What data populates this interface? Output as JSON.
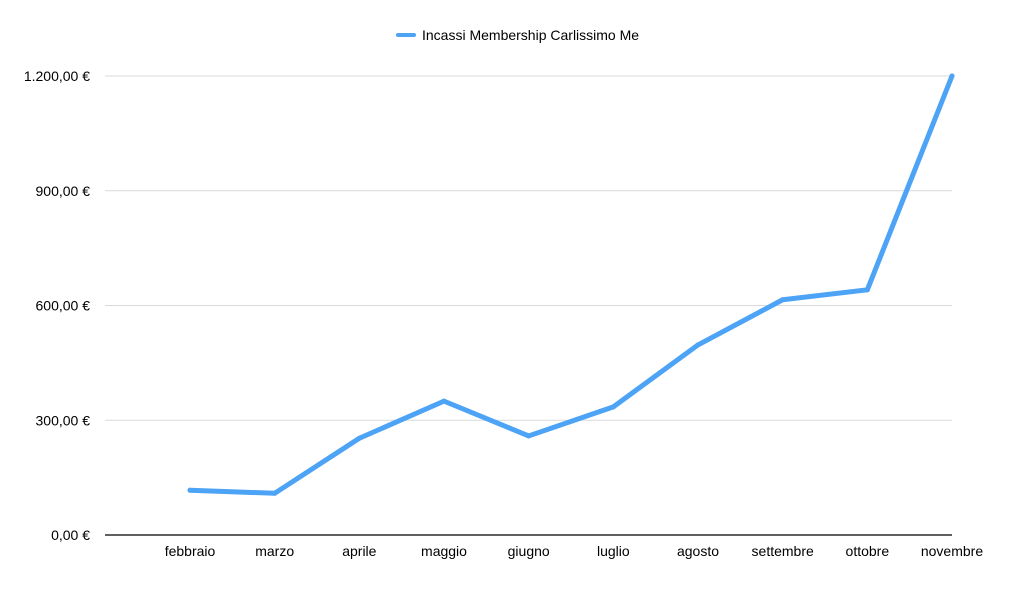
{
  "chart_data": {
    "type": "line",
    "categories": [
      "febbraio",
      "marzo",
      "aprile",
      "maggio",
      "giugno",
      "luglio",
      "agosto",
      "settembre",
      "ottobre",
      "novembre"
    ],
    "series": [
      {
        "name": "Incassi Membership Carlissimo Me",
        "values": [
          117,
          109,
          253,
          350,
          259,
          335,
          497,
          615,
          641,
          1200
        ],
        "color": "#4da3f5"
      }
    ],
    "y_ticks": [
      0,
      300,
      600,
      900,
      1200
    ],
    "y_tick_labels": [
      "0,00 €",
      "300,00 €",
      "600,00 €",
      "900,00 €",
      "1.200,00 €"
    ],
    "ylim": [
      0,
      1200
    ],
    "grid": true,
    "legend_position": "top-center",
    "title": "",
    "xlabel": "",
    "ylabel": ""
  }
}
